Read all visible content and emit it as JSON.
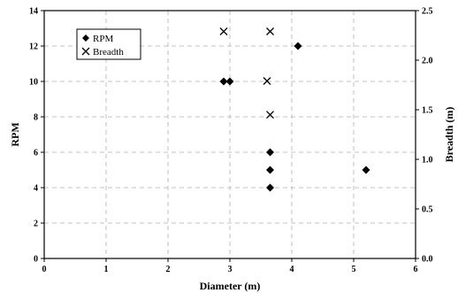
{
  "chart_data": {
    "type": "scatter",
    "title": "",
    "xlabel": "Diameter (m)",
    "ylabel": "RPM",
    "y2label": "Breadth (m)",
    "xlim": [
      0,
      6
    ],
    "ylim": [
      0,
      14
    ],
    "y2lim": [
      0.0,
      2.5
    ],
    "xticks": [
      "0",
      "1",
      "2",
      "3",
      "4",
      "5",
      "6"
    ],
    "yticks": [
      "0",
      "2",
      "4",
      "6",
      "8",
      "10",
      "12",
      "14"
    ],
    "y2ticks": [
      "0.0",
      "0.5",
      "1.0",
      "1.5",
      "2.0",
      "2.5"
    ],
    "grid": true,
    "legend_position": "top-left",
    "series": [
      {
        "name": "RPM",
        "axis": "left",
        "marker": "diamond",
        "points": [
          [
            2.9,
            10
          ],
          [
            3.0,
            10
          ],
          [
            4.1,
            12
          ],
          [
            3.65,
            6
          ],
          [
            3.65,
            5
          ],
          [
            3.65,
            4
          ],
          [
            5.2,
            5
          ]
        ]
      },
      {
        "name": "Breadth",
        "axis": "right",
        "marker": "cross",
        "points": [
          [
            2.9,
            2.29
          ],
          [
            3.65,
            2.29
          ],
          [
            3.6,
            1.79
          ],
          [
            3.65,
            1.45
          ]
        ]
      }
    ]
  }
}
